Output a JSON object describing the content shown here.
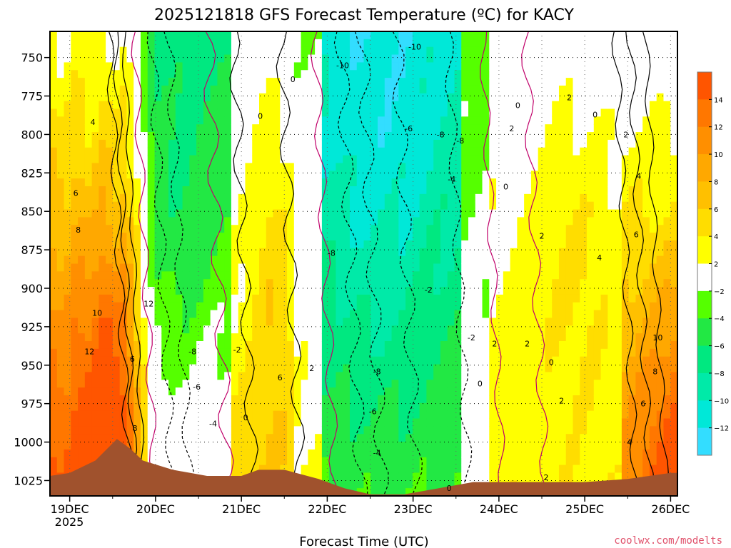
{
  "chart_data": {
    "type": "heatmap",
    "title": "2025121818 GFS Forecast Temperature (ºC) for KACY",
    "xlabel": "Forecast Time (UTC)",
    "ylabel": "",
    "credit": "coolwx.com/modelts",
    "x_ticks": [
      "19DEC",
      "20DEC",
      "21DEC",
      "22DEC",
      "23DEC",
      "24DEC",
      "25DEC",
      "26DEC"
    ],
    "x_year_label": "2025",
    "y_ticks": [
      "750",
      "775",
      "800",
      "825",
      "850",
      "875",
      "900",
      "925",
      "950",
      "975",
      "1000",
      "1025"
    ],
    "ylim": [
      1035,
      733
    ],
    "colorbar": {
      "labels": [
        "14",
        "12",
        "10",
        "8",
        "6",
        "4",
        "2",
        "−2",
        "−4",
        "−6",
        "−8",
        "−10",
        "−12"
      ],
      "bands": [
        {
          "range": [
            14,
            16
          ],
          "color": "#ff5500"
        },
        {
          "range": [
            12,
            14
          ],
          "color": "#ff7700"
        },
        {
          "range": [
            10,
            12
          ],
          "color": "#ff8f00"
        },
        {
          "range": [
            8,
            10
          ],
          "color": "#ffa800"
        },
        {
          "range": [
            6,
            8
          ],
          "color": "#ffc000"
        },
        {
          "range": [
            4,
            6
          ],
          "color": "#ffdd00"
        },
        {
          "range": [
            2,
            4
          ],
          "color": "#ffff00"
        },
        {
          "range": [
            -2,
            2
          ],
          "color": "#ffffff"
        },
        {
          "range": [
            -4,
            -2
          ],
          "color": "#55ff00"
        },
        {
          "range": [
            -6,
            -4
          ],
          "color": "#22e844"
        },
        {
          "range": [
            -8,
            -6
          ],
          "color": "#00e880"
        },
        {
          "range": [
            -10,
            -8
          ],
          "color": "#00eaa8"
        },
        {
          "range": [
            -12,
            -10
          ],
          "color": "#00e8d8"
        },
        {
          "range": [
            -14,
            -12
          ],
          "color": "#33ddff"
        }
      ]
    },
    "surface_color": "#a0522d",
    "contour_labels": [
      {
        "text": "4",
        "time": 0.27,
        "p": 792
      },
      {
        "text": "6",
        "time": 0.07,
        "p": 838
      },
      {
        "text": "8",
        "time": 0.1,
        "p": 862
      },
      {
        "text": "10",
        "time": 0.32,
        "p": 916
      },
      {
        "text": "12",
        "time": 0.23,
        "p": 941
      },
      {
        "text": "12",
        "time": 0.92,
        "p": 910
      },
      {
        "text": "6",
        "time": 0.73,
        "p": 946
      },
      {
        "text": "8",
        "time": 0.76,
        "p": 991
      },
      {
        "text": "-8",
        "time": 1.43,
        "p": 941
      },
      {
        "text": "-6",
        "time": 1.48,
        "p": 964
      },
      {
        "text": "-4",
        "time": 1.67,
        "p": 988
      },
      {
        "text": "-2",
        "time": 1.95,
        "p": 940
      },
      {
        "text": "0",
        "time": 2.05,
        "p": 984
      },
      {
        "text": "0",
        "time": 2.22,
        "p": 788
      },
      {
        "text": "0",
        "time": 2.6,
        "p": 764
      },
      {
        "text": "6",
        "time": 2.45,
        "p": 958
      },
      {
        "text": "2",
        "time": 2.82,
        "p": 952
      },
      {
        "text": "-10",
        "time": 4.02,
        "p": 743
      },
      {
        "text": "-10",
        "time": 3.18,
        "p": 755
      },
      {
        "text": "-8",
        "time": 3.05,
        "p": 877
      },
      {
        "text": "-6",
        "time": 3.95,
        "p": 796
      },
      {
        "text": "-8",
        "time": 4.32,
        "p": 800
      },
      {
        "text": "-8",
        "time": 4.55,
        "p": 804
      },
      {
        "text": "-4",
        "time": 4.45,
        "p": 829
      },
      {
        "text": "-8",
        "time": 3.58,
        "p": 954
      },
      {
        "text": "-6",
        "time": 3.53,
        "p": 980
      },
      {
        "text": "-4",
        "time": 3.58,
        "p": 1007
      },
      {
        "text": "-2",
        "time": 4.18,
        "p": 901
      },
      {
        "text": "-2",
        "time": 4.68,
        "p": 932
      },
      {
        "text": "0",
        "time": 4.42,
        "p": 1030
      },
      {
        "text": "0",
        "time": 4.78,
        "p": 962
      },
      {
        "text": "0",
        "time": 5.22,
        "p": 781
      },
      {
        "text": "2",
        "time": 5.15,
        "p": 796
      },
      {
        "text": "0",
        "time": 5.08,
        "p": 834
      },
      {
        "text": "2",
        "time": 4.95,
        "p": 936
      },
      {
        "text": "2",
        "time": 5.33,
        "p": 936
      },
      {
        "text": "0",
        "time": 5.61,
        "p": 948
      },
      {
        "text": "2",
        "time": 5.73,
        "p": 973
      },
      {
        "text": "2",
        "time": 5.55,
        "p": 1023
      },
      {
        "text": "2",
        "time": 5.5,
        "p": 866
      },
      {
        "text": "2",
        "time": 5.82,
        "p": 776
      },
      {
        "text": "0",
        "time": 6.12,
        "p": 787
      },
      {
        "text": "2",
        "time": 6.48,
        "p": 800
      },
      {
        "text": "4",
        "time": 6.63,
        "p": 827
      },
      {
        "text": "4",
        "time": 6.17,
        "p": 880
      },
      {
        "text": "6",
        "time": 6.6,
        "p": 865
      },
      {
        "text": "10",
        "time": 6.85,
        "p": 932
      },
      {
        "text": "8",
        "time": 6.82,
        "p": 954
      },
      {
        "text": "6",
        "time": 6.68,
        "p": 975
      },
      {
        "text": "4",
        "time": 6.52,
        "p": 1000
      }
    ]
  }
}
